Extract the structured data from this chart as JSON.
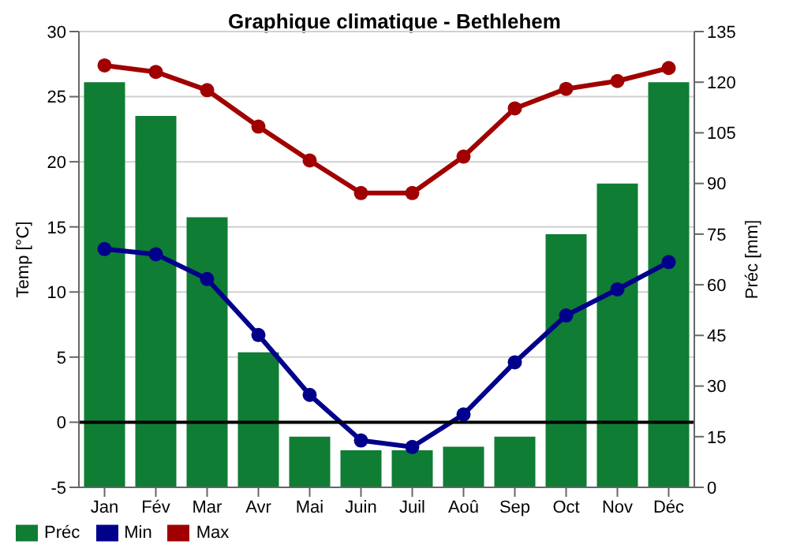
{
  "chart_data": {
    "type": "bar",
    "title": "Graphique climatique - Bethlehem",
    "ylabel": "Temp [°C]",
    "y2label": "Préc [mm]",
    "categories": [
      "Jan",
      "Fév",
      "Mar",
      "Avr",
      "Mai",
      "Juin",
      "Juil",
      "Aoû",
      "Sep",
      "Oct",
      "Nov",
      "Déc"
    ],
    "series": [
      {
        "name": "Préc",
        "color": "#0f7d33",
        "axis": "y2",
        "values": [
          120,
          110,
          80,
          40,
          15,
          11,
          11,
          12,
          15,
          75,
          90,
          120
        ]
      },
      {
        "type": "line",
        "name": "Min",
        "color": "#00008b",
        "values": [
          13.3,
          12.9,
          11.0,
          6.7,
          2.1,
          -1.4,
          -1.9,
          0.6,
          4.6,
          8.2,
          10.2,
          12.3
        ]
      },
      {
        "type": "line",
        "name": "Max",
        "color": "#a00000",
        "values": [
          27.4,
          26.9,
          25.5,
          22.7,
          20.1,
          17.6,
          17.6,
          20.4,
          24.1,
          25.6,
          26.2,
          27.2
        ]
      }
    ],
    "ylim": [
      -5,
      30
    ],
    "yticks": [
      -5,
      0,
      5,
      10,
      15,
      20,
      25,
      30
    ],
    "y2lim": [
      0,
      135
    ],
    "y2ticks": [
      0,
      15,
      30,
      45,
      60,
      75,
      90,
      105,
      120,
      135
    ],
    "ref_lines": [
      {
        "axis": "y",
        "value": 0,
        "color": "#000000"
      }
    ],
    "grid": "y",
    "legend": "bottom left",
    "marker": "circle",
    "line_style": "solid"
  }
}
